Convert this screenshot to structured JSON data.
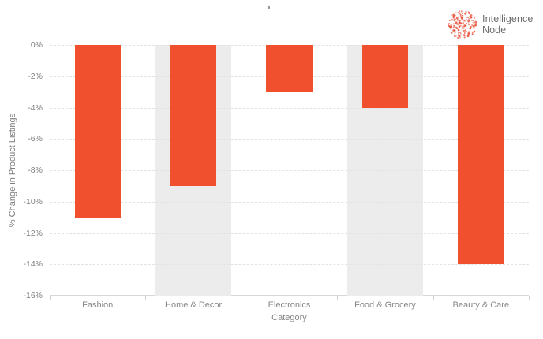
{
  "header": {
    "logo": {
      "name": "Intelligence Node",
      "line1": "Intelligence",
      "line2": "Node",
      "icon": "dotted-sphere-icon",
      "dot_color": "#e8543c",
      "text_color": "#6d6e71"
    }
  },
  "chart_data": {
    "type": "bar",
    "categories": [
      "Fashion",
      "Home & Decor",
      "Electronics",
      "Food & Grocery",
      "Beauty & Care"
    ],
    "values": [
      -11,
      -9,
      -3,
      -4,
      -14
    ],
    "title": "",
    "xlabel": "Category",
    "ylabel": "% Change in Product Listings",
    "ylim": [
      -16,
      0
    ],
    "yticks": [
      "0%",
      "-2%",
      "-4%",
      "-6%",
      "-8%",
      "-10%",
      "-12%",
      "-14%",
      "-16%"
    ],
    "grid": "horizontal-dashed",
    "legend": "none",
    "bar_color": "#f0502e",
    "band_color": "#ececec",
    "band_indices": [
      1,
      3
    ],
    "band_categories": [
      "Home & Decor",
      "Food & Grocery"
    ]
  }
}
